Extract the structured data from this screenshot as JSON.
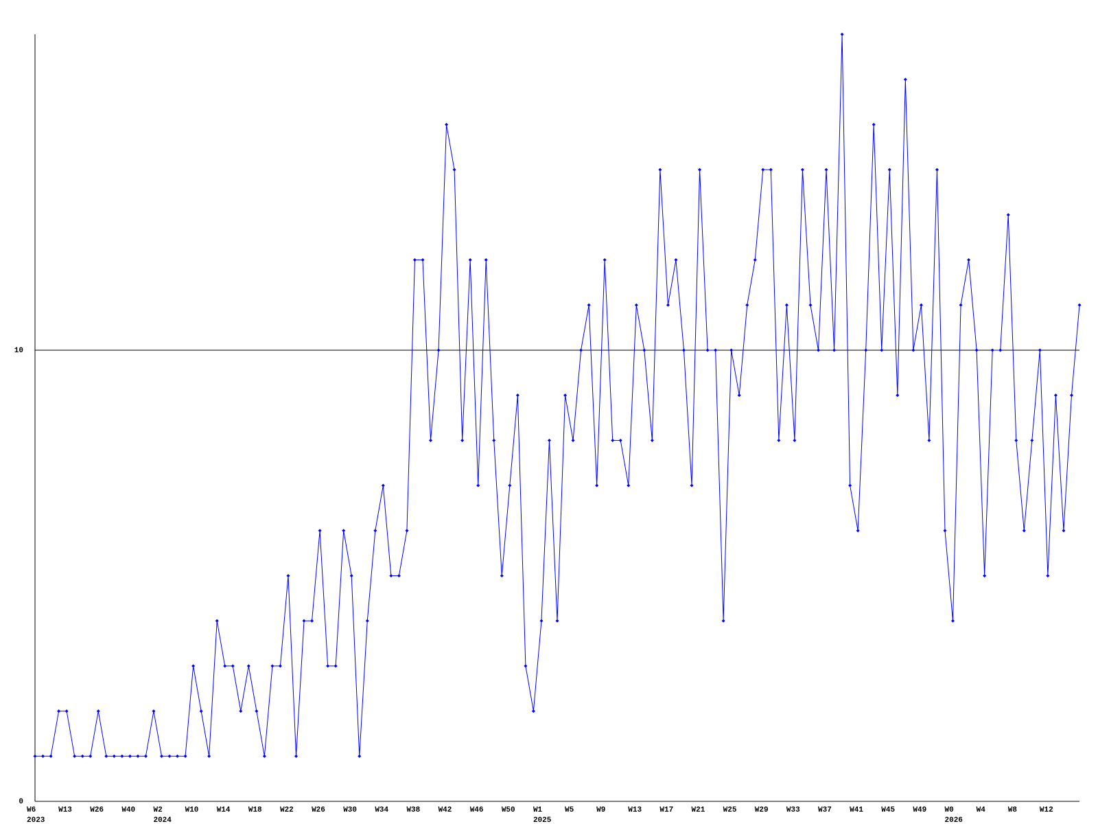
{
  "chart_data": {
    "type": "line",
    "categories": [
      "W6",
      null,
      null,
      null,
      "W13",
      null,
      null,
      null,
      "W26",
      null,
      null,
      null,
      "W40",
      null,
      null,
      null,
      "W2",
      null,
      null,
      null,
      "W10",
      null,
      null,
      null,
      "W14",
      null,
      null,
      null,
      "W18",
      null,
      null,
      null,
      "W22",
      null,
      null,
      null,
      "W26",
      null,
      null,
      null,
      "W30",
      null,
      null,
      null,
      "W34",
      null,
      null,
      null,
      "W38",
      null,
      null,
      null,
      "W42",
      null,
      null,
      null,
      "W46",
      null,
      null,
      null,
      "W50",
      null,
      null,
      null,
      "W1",
      null,
      null,
      null,
      "W5",
      null,
      null,
      null,
      "W9",
      null,
      null,
      null,
      "W13",
      null,
      null,
      null,
      "W17",
      null,
      null,
      null,
      "W21",
      null,
      null,
      null,
      "W25",
      null,
      null,
      null,
      "W29",
      null,
      null,
      null,
      "W33",
      null,
      null,
      null,
      "W37",
      null,
      null,
      null,
      "W41",
      null,
      null,
      null,
      "W45",
      null,
      null,
      null,
      "W49",
      null,
      null,
      null,
      "W0",
      null,
      null,
      null,
      "W4",
      null,
      null,
      null,
      "W8",
      null,
      null,
      null,
      "W12",
      null,
      null,
      null,
      null
    ],
    "category_sublabels": [
      "2023",
      null,
      null,
      null,
      null,
      null,
      null,
      null,
      null,
      null,
      null,
      null,
      null,
      null,
      null,
      null,
      "2024",
      null,
      null,
      null,
      null,
      null,
      null,
      null,
      null,
      null,
      null,
      null,
      null,
      null,
      null,
      null,
      null,
      null,
      null,
      null,
      null,
      null,
      null,
      null,
      null,
      null,
      null,
      null,
      null,
      null,
      null,
      null,
      null,
      null,
      null,
      null,
      null,
      null,
      null,
      null,
      null,
      null,
      null,
      null,
      null,
      null,
      null,
      null,
      "2025",
      null,
      null,
      null,
      null,
      null,
      null,
      null,
      null,
      null,
      null,
      null,
      null,
      null,
      null,
      null,
      null,
      null,
      null,
      null,
      null,
      null,
      null,
      null,
      null,
      null,
      null,
      null,
      null,
      null,
      null,
      null,
      null,
      null,
      null,
      null,
      null,
      null,
      null,
      null,
      null,
      null,
      null,
      null,
      null,
      null,
      null,
      null,
      null,
      null,
      null,
      null,
      "2026",
      null,
      null,
      null,
      null,
      null,
      null,
      null,
      null,
      null,
      null,
      null,
      null,
      null,
      null,
      null,
      null
    ],
    "values": [
      1,
      1,
      1,
      2,
      2,
      1,
      1,
      1,
      2,
      1,
      1,
      1,
      1,
      1,
      1,
      2,
      1,
      1,
      1,
      1,
      3,
      2,
      1,
      4,
      3,
      3,
      2,
      3,
      2,
      1,
      3,
      3,
      5,
      1,
      4,
      4,
      6,
      3,
      3,
      6,
      5,
      1,
      4,
      6,
      7,
      5,
      5,
      6,
      12,
      12,
      8,
      10,
      15,
      14,
      8,
      12,
      7,
      12,
      8,
      5,
      7,
      9,
      3,
      2,
      4,
      8,
      4,
      9,
      8,
      10,
      11,
      7,
      12,
      8,
      8,
      7,
      11,
      10,
      8,
      14,
      11,
      12,
      10,
      7,
      14,
      10,
      10,
      4,
      10,
      9,
      11,
      12,
      14,
      14,
      8,
      11,
      8,
      14,
      11,
      10,
      14,
      10,
      17,
      7,
      6,
      10,
      15,
      10,
      14,
      9,
      16,
      10,
      11,
      8,
      14,
      6,
      4,
      11,
      12,
      10,
      5,
      10,
      10,
      13,
      8,
      6,
      8,
      10,
      5,
      9,
      6,
      9,
      11
    ],
    "color": "#0000ff",
    "ylim": [
      0,
      17
    ],
    "yticks": [
      0,
      10
    ],
    "grid": true
  }
}
